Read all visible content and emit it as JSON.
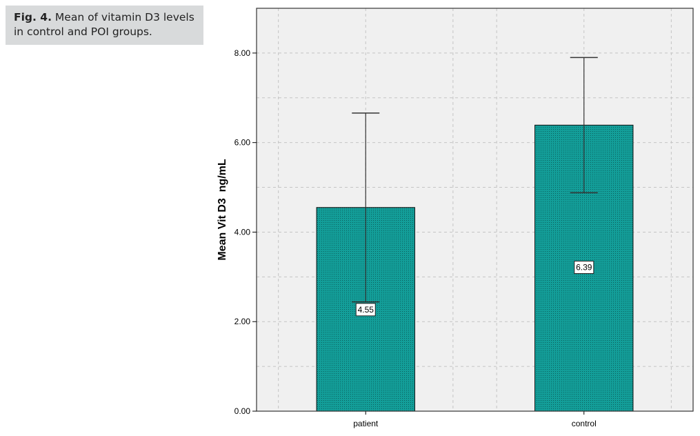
{
  "caption": {
    "label": "Fig. 4.",
    "text": "Mean of vitamin D3 levels in control and POI groups."
  },
  "chart_data": {
    "type": "bar",
    "categories": [
      "patient",
      "control"
    ],
    "values": [
      4.55,
      6.39
    ],
    "value_labels": [
      "4.55",
      "6.39"
    ],
    "error_high": [
      6.66,
      7.9
    ],
    "error_low": [
      2.44,
      4.88
    ],
    "xlabel": "",
    "ylabel": "Mean Vit D3  ng/mL",
    "ylim": [
      0,
      9
    ],
    "yticks": [
      0,
      2,
      4,
      6,
      8
    ],
    "ytick_labels": [
      "0.00",
      "2.00",
      "4.00",
      "6.00",
      "8.00"
    ],
    "grid": true,
    "colors": {
      "bar": "#139e99",
      "bar_stipple": "#0b5f5c",
      "plot_bg": "#f0f0f0",
      "grid": "#c4c4c4",
      "error_bar": "#333333"
    }
  }
}
